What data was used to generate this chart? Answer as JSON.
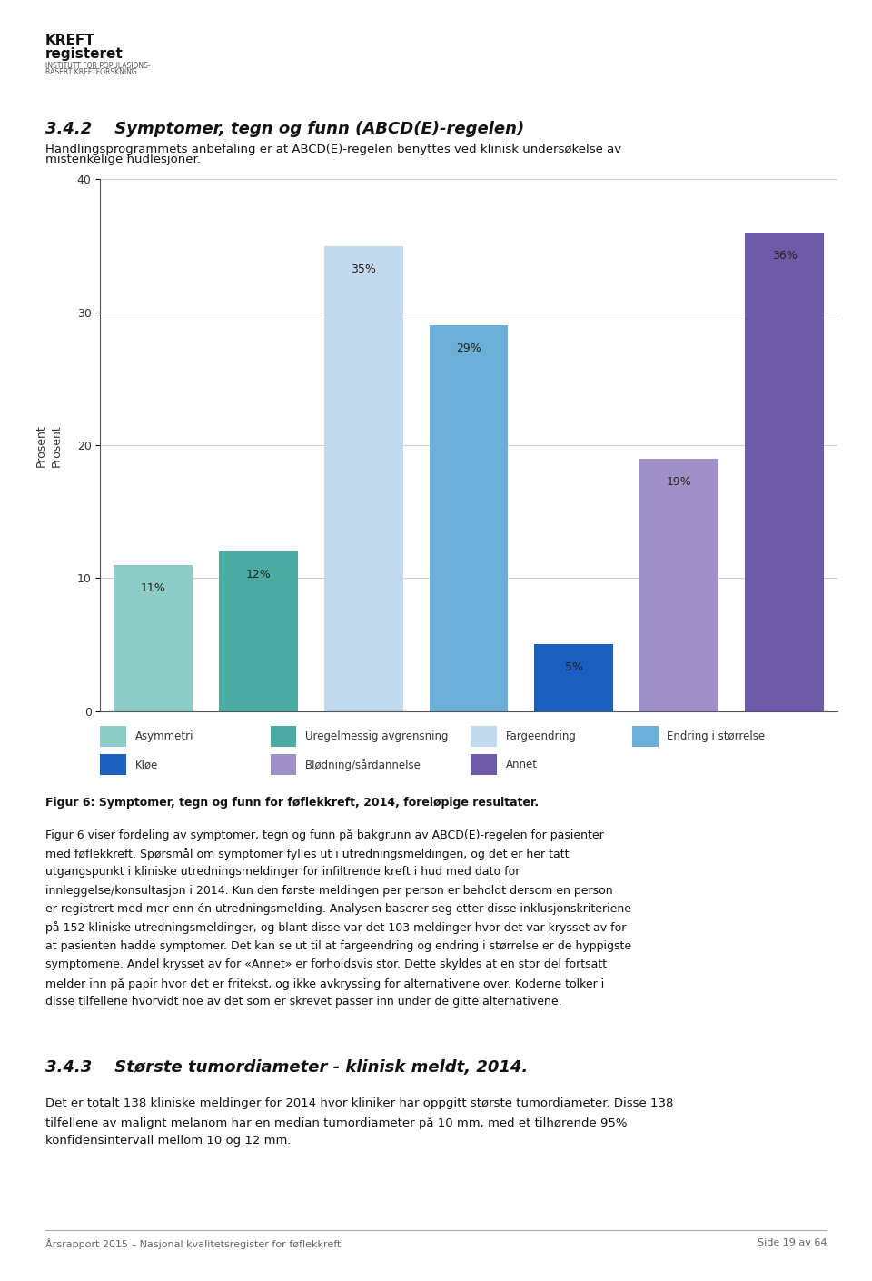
{
  "categories": [
    "Asymmetri",
    "Uregelmessig\navgrensning",
    "Fargeendring",
    "Endring i\nstørrelse",
    "Kløe",
    "Blødning/\nsårdannelse",
    "Annet"
  ],
  "values": [
    11,
    12,
    35,
    29,
    5,
    19,
    36
  ],
  "labels": [
    "11%",
    "12%",
    "35%",
    "29%",
    "5%",
    "19%",
    "36%"
  ],
  "bar_colors": [
    "#8ECDC5",
    "#4AABA0",
    "#C2D9EE",
    "#6BAED6",
    "#1B5EBF",
    "#9E91C8",
    "#6B5BA8"
  ],
  "ylim": [
    0,
    40
  ],
  "yticks": [
    0,
    10,
    20,
    30,
    40
  ],
  "ylabel": "Prosent",
  "background_color": "#ffffff",
  "legend_row1": [
    {
      "label": "Asymmetri",
      "color": "#8ECDC5"
    },
    {
      "label": "Uregelmessig avgrensning",
      "color": "#4AABA0"
    },
    {
      "label": "Fargeendring",
      "color": "#C2D9EE"
    },
    {
      "label": "Endring i størrelse",
      "color": "#6BAED6"
    }
  ],
  "legend_row2": [
    {
      "label": "Kløe",
      "color": "#1B5EBF"
    },
    {
      "label": "Blødning/sårdannelse",
      "color": "#9E91C8"
    },
    {
      "label": "Annet",
      "color": "#6B5BA8"
    }
  ],
  "section_heading": "3.4.2    Symptomer, tegn og funn (ABCD(E)-regelen)",
  "subtitle_line1": "Handlingsprogrammets anbefaling er at ABCD(E)-regelen benyttes ved klinisk undersøkelse av",
  "subtitle_line2": "mistenkelige hudlesjoner.",
  "figure_caption": "Figur 6: Symptomer, tegn og funn for føflekkreft, 2014, foreløpige resultater.",
  "body_text_lines": [
    "Figur 6 viser fordeling av symptomer, tegn og funn på bakgrunn av ABCD(E)-regelen for pasienter",
    "med føflekkreft. Spørsmål om symptomer fylles ut i utredningsmeldingen, og det er her tatt",
    "utgangspunkt i kliniske utredningsmeldinger for infiltrende kreft i hud med dato for",
    "innleggelse/konsultasjon i 2014. Kun den første meldingen per person er beholdt dersom en person",
    "er registrert med mer enn én utredningsmelding. Analysen baserer seg etter disse inklusjonskriteriene",
    "på 152 kliniske utredningsmeldinger, og blant disse var det 103 meldinger hvor det var krysset av for",
    "at pasienten hadde symptomer. Det kan se ut til at fargeendring og endring i størrelse er de hyppigste",
    "symptomene. Andel krysset av for «Annet» er forholdsvis stor. Dette skyldes at en stor del fortsatt",
    "melder inn på papir hvor det er fritekst, og ikke avkryssing for alternativene over. Koderne tolker i",
    "disse tilfellene hvorvidt noe av det som er skrevet passer inn under de gitte alternativene."
  ],
  "section2_heading": "3.4.3    Største tumordiameter - klinisk meldt, 2014.",
  "section2_text_lines": [
    "Det er totalt 138 kliniske meldinger for 2014 hvor kliniker har oppgitt største tumordiameter. Disse 138",
    "tilfellene av malignt melanom har en median tumordiameter på 10 mm, med et tilhørende 95%",
    "konfidensintervall mellom 10 og 12 mm."
  ],
  "footer_left": "Årsrapport 2015 – Nasjonal kvalitetsregister for føflekkreft",
  "footer_right": "Side 19 av 64",
  "logo_line1": "KREFT",
  "logo_line2": "registeret",
  "logo_line3": "INSTITUTT FOR POPULASJONS-",
  "logo_line4": "BASERT KREFTFORSKNING"
}
